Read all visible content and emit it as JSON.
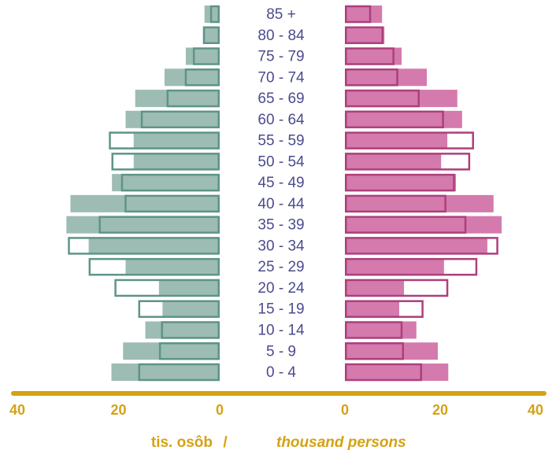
{
  "chart_data": {
    "type": "pyramid",
    "categories": [
      "0 - 4",
      "5 - 9",
      "10 - 14",
      "15 - 19",
      "20 - 24",
      "25 - 29",
      "30 - 34",
      "35 - 39",
      "40 - 44",
      "45 - 49",
      "50 - 54",
      "55 - 59",
      "60 - 64",
      "65 - 69",
      "70 - 74",
      "75 - 79",
      "80 - 84",
      "85 +"
    ],
    "left": {
      "xlim": [
        0,
        40
      ],
      "xticks": [
        0,
        20,
        40
      ],
      "series": [
        {
          "style": "fill",
          "color": "#9dbcb3",
          "values": [
            21.4,
            19.1,
            14.7,
            11.3,
            12,
            18.6,
            25.9,
            30.3,
            29.5,
            21.3,
            17,
            17,
            18.6,
            16.7,
            10.9,
            6.7,
            3.3,
            3
          ]
        },
        {
          "style": "outline",
          "color": "#5e9488",
          "values": [
            16.1,
            12,
            11.6,
            16.1,
            20.8,
            25.9,
            30,
            23.9,
            18.8,
            19.5,
            21.4,
            21.9,
            15.6,
            10.5,
            6.9,
            5.3,
            3.3,
            1.9
          ]
        }
      ]
    },
    "right": {
      "xlim": [
        0,
        40
      ],
      "xticks": [
        0,
        20,
        40
      ],
      "series": [
        {
          "style": "fill",
          "color": "#d47aad",
          "values": [
            21.7,
            19.5,
            15,
            11.4,
            12.4,
            20.8,
            29.9,
            32.9,
            31.2,
            23.3,
            20.2,
            21.5,
            24.6,
            23.6,
            17.2,
            11.9,
            8.3,
            7.8
          ]
        },
        {
          "style": "outline",
          "color": "#ad3f7c",
          "values": [
            16.2,
            12.4,
            12.1,
            16.5,
            21.7,
            27.8,
            32.2,
            25.5,
            21.3,
            23.1,
            26.3,
            27.1,
            20.8,
            15.7,
            11.2,
            10.4,
            8.1,
            5.5
          ]
        }
      ]
    },
    "axis_color": "#d4a214",
    "label_color": "#4b4b8e",
    "xlabel": [
      "tis. osôb",
      "/",
      "thousand persons"
    ]
  }
}
